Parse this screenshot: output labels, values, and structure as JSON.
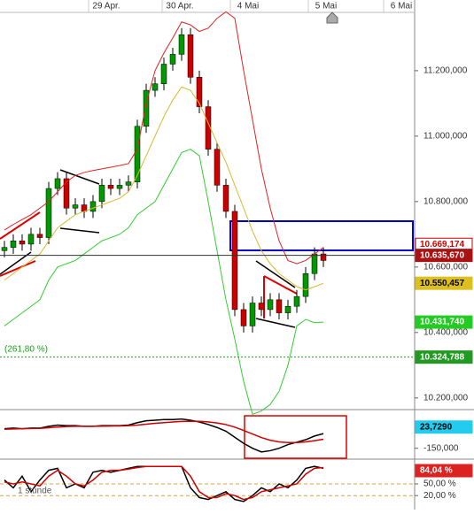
{
  "chart_data": [
    {
      "type": "candlestick",
      "x_labels": [
        "29 Apr.",
        "30 Apr.",
        "4 Mai",
        "5 Mai",
        "6 Mai"
      ],
      "ylim": [
        10167,
        11416
      ],
      "yticks": [
        {
          "value": 11200,
          "label": "11.200,000"
        },
        {
          "value": 11000,
          "label": "11.000,000"
        },
        {
          "value": 10800,
          "label": "10.800,000"
        },
        {
          "value": 10600,
          "label": "10.600,000"
        },
        {
          "value": 10400,
          "label": "10.400,000"
        },
        {
          "value": 10200,
          "label": "10.200,000"
        }
      ],
      "candles": {
        "open": [
          10650,
          10660,
          10680,
          10670,
          10700,
          10690,
          10840,
          10870,
          10780,
          10790,
          10770,
          10800,
          10850,
          10840,
          10850,
          10860,
          11030,
          11140,
          11160,
          11220,
          11250,
          11310,
          11180,
          11090,
          10960,
          10850,
          10770,
          10470,
          10420,
          10490,
          10470,
          10500,
          10460,
          10480,
          10510,
          10580,
          10640
        ],
        "high": [
          10680,
          10700,
          10700,
          10720,
          10720,
          10860,
          10890,
          10890,
          10810,
          10810,
          10820,
          10870,
          10870,
          10870,
          10880,
          11050,
          11160,
          11180,
          11240,
          11270,
          11330,
          11330,
          11200,
          11110,
          10980,
          10870,
          10790,
          10490,
          10510,
          10510,
          10520,
          10520,
          10500,
          10530,
          10600,
          10660,
          10660
        ],
        "low": [
          10630,
          10640,
          10650,
          10650,
          10670,
          10670,
          10820,
          10760,
          10760,
          10750,
          10750,
          10780,
          10820,
          10820,
          10830,
          10840,
          11010,
          11120,
          11140,
          11200,
          11230,
          11160,
          11070,
          10940,
          10830,
          10750,
          10450,
          10400,
          10400,
          10450,
          10450,
          10440,
          10440,
          10460,
          10490,
          10560,
          10600
        ],
        "close": [
          10660,
          10680,
          10670,
          10700,
          10690,
          10840,
          10870,
          10780,
          10790,
          10770,
          10800,
          10850,
          10840,
          10850,
          10860,
          11030,
          11140,
          11160,
          11220,
          11250,
          11310,
          11180,
          11090,
          10960,
          10850,
          10770,
          10470,
          10420,
          10490,
          10470,
          10500,
          10460,
          10480,
          10510,
          10580,
          10640,
          10620
        ],
        "up_color": "#009900",
        "down_color": "#cc0000"
      },
      "series": [
        {
          "color": "#dd2222",
          "values": [
            10713,
            10730,
            10745,
            10760,
            10780,
            10800,
            10830,
            10860,
            10880,
            10889,
            10895,
            10900,
            10905,
            10910,
            10916,
            10960,
            11100,
            11200,
            11254,
            11300,
            11349,
            11340,
            11320,
            11330,
            11360,
            11380,
            11360,
            11200,
            11050,
            10900,
            10780,
            10680,
            10620,
            10610,
            10620,
            10640,
            10660
          ]
        },
        {
          "color": "#d8b830",
          "values": [
            10560,
            10580,
            10600,
            10620,
            10640,
            10680,
            10720,
            10740,
            10760,
            10770,
            10780,
            10790,
            10800,
            10810,
            10830,
            10880,
            10940,
            11000,
            11060,
            11110,
            11150,
            11140,
            11100,
            11040,
            10980,
            10920,
            10850,
            10780,
            10710,
            10650,
            10610,
            10580,
            10560,
            10540,
            10530,
            10540,
            10550
          ]
        },
        {
          "color": "#33cc33",
          "values": [
            10420,
            10440,
            10460,
            10480,
            10500,
            10560,
            10600,
            10610,
            10620,
            10640,
            10660,
            10680,
            10690,
            10700,
            10720,
            10760,
            10780,
            10800,
            10850,
            10900,
            10950,
            10960,
            10940,
            10800,
            10650,
            10500,
            10380,
            10250,
            10150,
            10160,
            10180,
            10220,
            10300,
            10420,
            10440,
            10430,
            10432
          ]
        }
      ],
      "levels": [
        {
          "value": 10669.174,
          "label": "10.669,174",
          "fill": "#ffffff",
          "text_color": "#cc0000"
        },
        {
          "value": 10635.67,
          "label": "10.635,670",
          "fill": "#aa1111",
          "text_color": "#ffffff",
          "line_style": "solid"
        },
        {
          "value": 10550.457,
          "label": "10.550,457",
          "fill": "#ddc020",
          "text_color": "#000000"
        },
        {
          "value": 10431.74,
          "label": "10.431,740",
          "fill": "#22cc22",
          "text_color": "#ffffff"
        },
        {
          "value": 10324.788,
          "label": "10.324,788",
          "fill": "#229922",
          "text_color": "#ffffff",
          "line_style": "dotted",
          "annotation": "(261,80 %)"
        }
      ]
    },
    {
      "type": "line",
      "ylim": [
        -232,
        145
      ],
      "yticks": [
        {
          "value": -150,
          "label": "-150,000"
        }
      ],
      "series": [
        {
          "color": "#000000",
          "values": [
            10,
            15,
            10,
            15,
            15,
            30,
            40,
            35,
            35,
            30,
            30,
            35,
            35,
            35,
            40,
            60,
            75,
            80,
            85,
            85,
            90,
            80,
            65,
            45,
            20,
            -10,
            -60,
            -110,
            -150,
            -180,
            -170,
            -150,
            -120,
            -100,
            -80,
            -50,
            -30
          ]
        },
        {
          "color": "#cc0000",
          "values": [
            5,
            8,
            10,
            12,
            13,
            18,
            24,
            28,
            30,
            30,
            30,
            31,
            32,
            33,
            35,
            40,
            47,
            54,
            60,
            65,
            70,
            72,
            71,
            66,
            57,
            44,
            23,
            -4,
            -33,
            -62,
            -84,
            -98,
            -103,
            -103,
            -98,
            -88,
            -76
          ]
        }
      ],
      "levels": [
        {
          "value": 23.729,
          "label": "23,7290",
          "fill": "#22ccee",
          "text_color": "#000000"
        }
      ]
    },
    {
      "type": "line",
      "ylim": [
        0,
        100
      ],
      "yticks": [
        {
          "value": 50,
          "label": "50,00 %"
        },
        {
          "value": 20,
          "label": "20,00 %"
        }
      ],
      "annotation": "1 stunde",
      "series": [
        {
          "color": "#000000",
          "values": [
            60,
            40,
            70,
            30,
            60,
            85,
            90,
            40,
            50,
            40,
            80,
            85,
            80,
            85,
            90,
            95,
            95,
            95,
            95,
            95,
            95,
            40,
            15,
            10,
            20,
            30,
            10,
            5,
            20,
            40,
            30,
            50,
            40,
            60,
            90,
            95,
            90
          ]
        },
        {
          "color": "#cc0000",
          "values": [
            55,
            50,
            55,
            50,
            45,
            70,
            85,
            70,
            50,
            45,
            60,
            80,
            85,
            85,
            88,
            92,
            95,
            95,
            95,
            95,
            95,
            70,
            30,
            15,
            15,
            25,
            20,
            10,
            15,
            30,
            35,
            40,
            45,
            50,
            75,
            90,
            92
          ]
        }
      ],
      "levels": [
        {
          "value": 84.04,
          "label": "84,04 %",
          "fill": "#dd2222",
          "text_color": "#ffffff"
        }
      ]
    }
  ]
}
